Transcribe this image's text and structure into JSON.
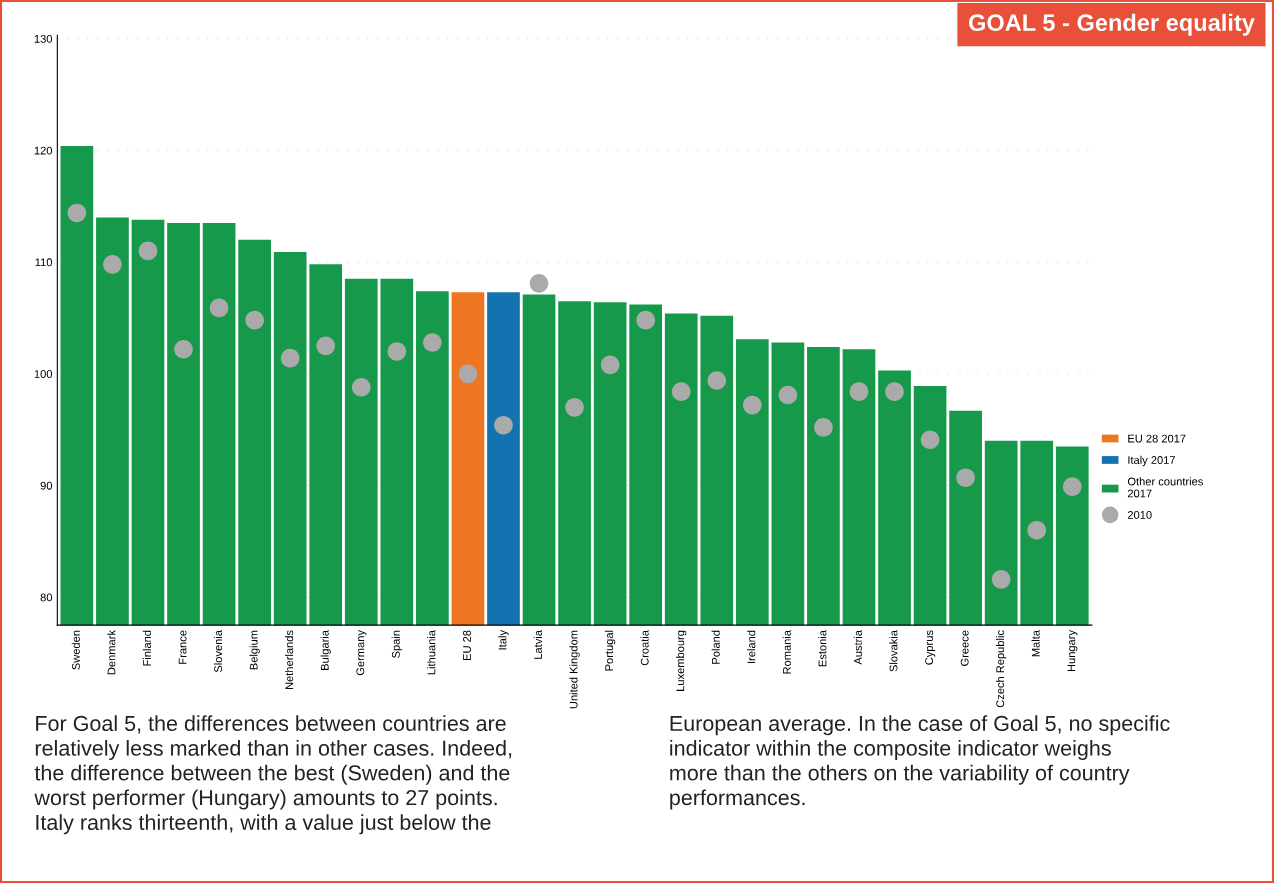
{
  "chart_data": {
    "type": "bar",
    "title": "GOAL 5 - Gender equality",
    "categories": [
      "Sweden",
      "Denmark",
      "Finland",
      "France",
      "Slovenia",
      "Belgium",
      "Netherlands",
      "Bulgaria",
      "Germany",
      "Spain",
      "Lithuania",
      "EU 28",
      "Italy",
      "Latvia",
      "United Kingdom",
      "Portugal",
      "Croatia",
      "Luxembourg",
      "Poland",
      "Ireland",
      "Romania",
      "Estonia",
      "Austria",
      "Slovakia",
      "Cyprus",
      "Greece",
      "Czech Republic",
      "Malta",
      "Hungary"
    ],
    "series": [
      {
        "name": "EU 28 2017",
        "color": "#ee7623",
        "values": [
          null,
          null,
          null,
          null,
          null,
          null,
          null,
          null,
          null,
          null,
          null,
          107.3,
          null,
          null,
          null,
          null,
          null,
          null,
          null,
          null,
          null,
          null,
          null,
          null,
          null,
          null,
          null,
          null,
          null
        ]
      },
      {
        "name": "Italy 2017",
        "color": "#1273b0",
        "values": [
          null,
          null,
          null,
          null,
          null,
          null,
          null,
          null,
          null,
          null,
          null,
          null,
          107.3,
          null,
          null,
          null,
          null,
          null,
          null,
          null,
          null,
          null,
          null,
          null,
          null,
          null,
          null,
          null,
          null
        ]
      },
      {
        "name": "Other countries\n2017",
        "color": "#17994b",
        "values": [
          120.4,
          114.0,
          113.8,
          113.5,
          113.5,
          112.0,
          110.9,
          109.8,
          108.5,
          108.5,
          107.4,
          null,
          null,
          107.1,
          106.5,
          106.4,
          106.2,
          105.4,
          105.2,
          103.1,
          102.8,
          102.4,
          102.2,
          100.3,
          98.9,
          96.7,
          94.0,
          94.0,
          93.5
        ]
      },
      {
        "name": "2010",
        "type": "scatter",
        "color": "#aaaaaa",
        "marker": "circle",
        "values": [
          114.4,
          109.8,
          111.0,
          102.2,
          105.9,
          104.8,
          101.4,
          102.5,
          98.8,
          102.0,
          102.8,
          100.0,
          95.4,
          108.1,
          97.0,
          100.8,
          104.8,
          98.4,
          99.4,
          97.2,
          98.1,
          95.2,
          98.4,
          98.4,
          94.1,
          90.7,
          81.6,
          86.0,
          89.9
        ]
      }
    ],
    "ylim": [
      77.5,
      130.3
    ],
    "yticks": [
      80,
      90,
      100,
      110,
      120,
      130
    ],
    "grid": "y",
    "legend": "right",
    "annotations": [
      "For Goal 5, the differences between countries are\nrelatively less marked than in other cases. Indeed,\nthe difference between the best (Sweden) and the\nworst performer (Hungary) amounts to 27 points.\nItaly ranks thirteenth, with a value just below the",
      "European average. In the case of Goal 5, no specific\nindicator within the composite indicator weighs\nmore than the others on the variability of country\nperformances."
    ]
  }
}
